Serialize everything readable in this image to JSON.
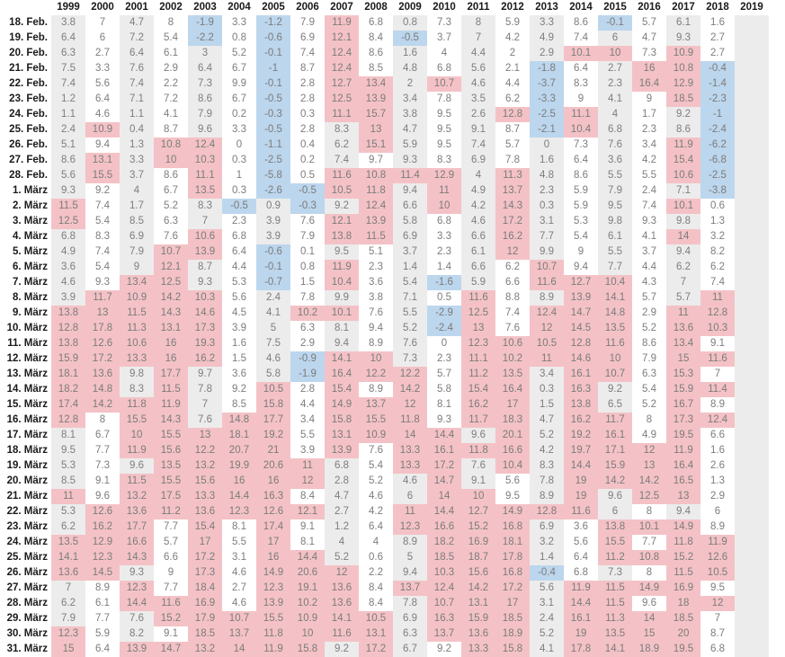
{
  "chart_data": {
    "type": "table",
    "title": "",
    "years": [
      "1999",
      "2000",
      "2001",
      "2002",
      "2003",
      "2004",
      "2005",
      "2006",
      "2007",
      "2008",
      "2009",
      "2010",
      "2011",
      "2012",
      "2013",
      "2014",
      "2015",
      "2016",
      "2017",
      "2018",
      "2019"
    ],
    "dates": [
      "18. Feb.",
      "19. Feb.",
      "20. Feb.",
      "21. Feb.",
      "22. Feb.",
      "23. Feb.",
      "24. Feb.",
      "25. Feb.",
      "26. Feb.",
      "27. Feb.",
      "28. Feb.",
      "1. März",
      "2. März",
      "3. März",
      "4. März",
      "5. März",
      "6. März",
      "7. März",
      "8. März",
      "9. März",
      "10. März",
      "11. März",
      "12. März",
      "13. März",
      "14. März",
      "15. März",
      "16. März",
      "17. März",
      "18. März",
      "19. März",
      "20. März",
      "21. März",
      "22. März",
      "23. März",
      "24. März",
      "25. März",
      "26. März",
      "27. März",
      "28. März",
      "29. März",
      "30. März",
      "31. März"
    ],
    "values": [
      [
        "3.8",
        "7",
        "4.7",
        "8",
        "-1.9",
        "3.3",
        "-1.2",
        "7.9",
        "11.9",
        "6.8",
        "0.8",
        "7.3",
        "8",
        "5.9",
        "3.3",
        "8.6",
        "-0.1",
        "5.7",
        "6.1",
        "1.6",
        ""
      ],
      [
        "6.4",
        "6",
        "7.2",
        "5.4",
        "-2.2",
        "0.8",
        "-0.6",
        "6.9",
        "12.1",
        "8.4",
        "-0.5",
        "3.7",
        "7",
        "4.2",
        "4.9",
        "7.4",
        "6",
        "4.7",
        "9.3",
        "2.7",
        ""
      ],
      [
        "6.3",
        "2.7",
        "6.4",
        "6.1",
        "3",
        "5.2",
        "-0.1",
        "7.4",
        "12.4",
        "8.6",
        "1.6",
        "4",
        "4.4",
        "2",
        "2.9",
        "10.1",
        "10",
        "7.3",
        "10.9",
        "2.7",
        ""
      ],
      [
        "7.5",
        "3.3",
        "7.6",
        "2.9",
        "6.4",
        "6.7",
        "-1",
        "8.7",
        "12.4",
        "8.5",
        "4.8",
        "6.8",
        "5.6",
        "2.1",
        "-1.8",
        "6.4",
        "2.7",
        "16",
        "10.8",
        "-0.4",
        ""
      ],
      [
        "7.4",
        "5.6",
        "7.4",
        "2.2",
        "7.3",
        "9.9",
        "-0.1",
        "2.8",
        "12.7",
        "13.4",
        "2",
        "10.7",
        "4.6",
        "4.4",
        "-3.7",
        "8.3",
        "2.3",
        "16.4",
        "12.9",
        "-1.4",
        ""
      ],
      [
        "1.2",
        "6.4",
        "7.1",
        "7.2",
        "8.6",
        "6.7",
        "-0.5",
        "2.8",
        "12.5",
        "13.9",
        "3.4",
        "7.8",
        "3.5",
        "6.2",
        "-3.3",
        "9",
        "4.1",
        "9",
        "18.5",
        "-2.3",
        ""
      ],
      [
        "1.1",
        "4.6",
        "1.1",
        "4.1",
        "7.9",
        "0.2",
        "-0.3",
        "0.3",
        "11.1",
        "15.7",
        "3.8",
        "9.5",
        "2.6",
        "12.8",
        "-2.5",
        "11.1",
        "4",
        "1.7",
        "9.2",
        "-1",
        ""
      ],
      [
        "2.4",
        "10.9",
        "0.4",
        "8.7",
        "9.6",
        "3.3",
        "-0.5",
        "2.8",
        "8.3",
        "13",
        "4.7",
        "9.5",
        "9.1",
        "8.7",
        "-2.1",
        "10.4",
        "6.8",
        "2.3",
        "8.6",
        "-2.4",
        ""
      ],
      [
        "5.1",
        "9.4",
        "1.3",
        "10.8",
        "12.4",
        "0",
        "-1.1",
        "0.4",
        "6.2",
        "15.1",
        "5.9",
        "9.5",
        "7.4",
        "5.7",
        "0",
        "7.3",
        "7.6",
        "3.4",
        "11.9",
        "-6.2",
        ""
      ],
      [
        "8.6",
        "13.1",
        "3.3",
        "10",
        "10.3",
        "0.3",
        "-2.5",
        "0.2",
        "7.4",
        "9.7",
        "9.3",
        "8.3",
        "6.9",
        "7.8",
        "1.6",
        "6.4",
        "3.6",
        "4.2",
        "15.4",
        "-6.8",
        ""
      ],
      [
        "5.6",
        "15.5",
        "3.7",
        "8.6",
        "11.1",
        "1",
        "-5.8",
        "0.5",
        "11.6",
        "10.8",
        "11.4",
        "12.9",
        "4",
        "11.3",
        "4.8",
        "8.6",
        "5.5",
        "5.5",
        "10.6",
        "-2.5",
        ""
      ],
      [
        "9.3",
        "9.2",
        "4",
        "6.7",
        "13.5",
        "0.3",
        "-2.6",
        "-0.5",
        "10.5",
        "11.8",
        "9.4",
        "11",
        "4.9",
        "13.7",
        "2.3",
        "5.9",
        "7.9",
        "2.4",
        "7.1",
        "-3.8",
        ""
      ],
      [
        "11.5",
        "7.4",
        "1.7",
        "5.2",
        "8.3",
        "-0.5",
        "0.9",
        "-0.3",
        "9.2",
        "12.4",
        "6.6",
        "10",
        "4.2",
        "14.3",
        "0.3",
        "5.9",
        "9.5",
        "7.4",
        "10.1",
        "0.6",
        ""
      ],
      [
        "12.5",
        "5.4",
        "8.5",
        "6.3",
        "7",
        "2.3",
        "3.9",
        "7.6",
        "12.1",
        "13.9",
        "5.8",
        "6.8",
        "4.6",
        "17.2",
        "3.1",
        "5.3",
        "9.8",
        "9.3",
        "9.8",
        "1.3",
        ""
      ],
      [
        "6.8",
        "8.3",
        "6.9",
        "7.6",
        "10.6",
        "6.8",
        "3.9",
        "7.9",
        "13.8",
        "11.5",
        "6.9",
        "3.3",
        "6.6",
        "16.2",
        "7.7",
        "5.4",
        "6.1",
        "4.1",
        "14",
        "3.2",
        ""
      ],
      [
        "4.9",
        "7.4",
        "7.9",
        "10.7",
        "13.9",
        "6.4",
        "-0.6",
        "0.1",
        "9.5",
        "5.1",
        "3.7",
        "2.3",
        "6.1",
        "12",
        "9.9",
        "9",
        "5.5",
        "3.7",
        "9.4",
        "8.2",
        ""
      ],
      [
        "3.6",
        "5.4",
        "9",
        "12.1",
        "8.7",
        "4.4",
        "-0.1",
        "0.8",
        "11.9",
        "2.3",
        "1.4",
        "1.4",
        "6.6",
        "6.2",
        "10.7",
        "9.4",
        "7.7",
        "4.4",
        "6.2",
        "6.2",
        ""
      ],
      [
        "4.6",
        "9.3",
        "13.4",
        "12.5",
        "9.3",
        "5.3",
        "-0.7",
        "1.5",
        "10.4",
        "3.6",
        "5.4",
        "-1.6",
        "5.9",
        "6.6",
        "11.6",
        "12.7",
        "10.4",
        "4.3",
        "7",
        "7.4",
        ""
      ],
      [
        "3.9",
        "11.7",
        "10.9",
        "14.2",
        "10.3",
        "5.6",
        "2.4",
        "7.8",
        "9.9",
        "3.8",
        "7.1",
        "0.5",
        "11.6",
        "8.8",
        "8.9",
        "13.9",
        "14.1",
        "5.7",
        "5.7",
        "11",
        ""
      ],
      [
        "13.8",
        "13",
        "11.5",
        "14.3",
        "14.6",
        "4.5",
        "4.1",
        "10.2",
        "10.1",
        "7.6",
        "5.5",
        "-2.9",
        "12.5",
        "7.4",
        "12.4",
        "14.7",
        "14.8",
        "2.9",
        "11",
        "12.8",
        ""
      ],
      [
        "12.8",
        "17.8",
        "11.3",
        "13.1",
        "17.3",
        "3.9",
        "5",
        "6.3",
        "8.1",
        "9.4",
        "5.2",
        "-2.4",
        "13",
        "7.6",
        "12",
        "14.5",
        "13.5",
        "5.2",
        "13.6",
        "10.3",
        ""
      ],
      [
        "13.8",
        "12.6",
        "10.6",
        "16",
        "19.3",
        "1.6",
        "7.5",
        "2.9",
        "9.4",
        "8.9",
        "7.6",
        "0",
        "12.3",
        "10.6",
        "10.5",
        "12.8",
        "11.6",
        "8.6",
        "13.4",
        "9.1",
        ""
      ],
      [
        "15.9",
        "17.2",
        "13.3",
        "16",
        "16.2",
        "1.5",
        "4.6",
        "-0.9",
        "14.1",
        "10",
        "7.3",
        "2.3",
        "11.1",
        "10.2",
        "11",
        "14.6",
        "10",
        "7.9",
        "15",
        "11.6",
        ""
      ],
      [
        "18.1",
        "13.6",
        "9.8",
        "17.7",
        "9.7",
        "3.6",
        "5.8",
        "-1.9",
        "16.4",
        "12.2",
        "12.2",
        "5.7",
        "11.2",
        "13.5",
        "3.4",
        "16.1",
        "10.7",
        "6.3",
        "15.3",
        "7",
        ""
      ],
      [
        "18.2",
        "14.8",
        "8.3",
        "11.5",
        "7.8",
        "9.2",
        "10.5",
        "2.8",
        "15.4",
        "8.9",
        "14.2",
        "5.8",
        "15.4",
        "16.4",
        "0.3",
        "16.3",
        "9.2",
        "5.4",
        "15.9",
        "11.4",
        ""
      ],
      [
        "17.4",
        "14.2",
        "11.8",
        "11.9",
        "7",
        "8.5",
        "15.8",
        "4.4",
        "14.9",
        "13.7",
        "12",
        "8.1",
        "16.2",
        "17",
        "1.5",
        "13.8",
        "6.5",
        "5.2",
        "16.7",
        "8.9",
        ""
      ],
      [
        "12.8",
        "8",
        "15.5",
        "14.3",
        "7.6",
        "14.8",
        "17.7",
        "3.4",
        "15.8",
        "15.5",
        "11.8",
        "9.3",
        "11.7",
        "18.3",
        "4.7",
        "16.2",
        "11.7",
        "8",
        "17.3",
        "12.4",
        ""
      ],
      [
        "8.1",
        "6.7",
        "10",
        "15.5",
        "13",
        "18.1",
        "19.2",
        "5.5",
        "13.1",
        "10.9",
        "14",
        "14.4",
        "9.6",
        "20.1",
        "5.2",
        "19.2",
        "16.1",
        "4.9",
        "19.5",
        "6.6",
        ""
      ],
      [
        "9.5",
        "7.7",
        "11.9",
        "15.6",
        "12.2",
        "20.7",
        "21",
        "3.9",
        "13.9",
        "7.6",
        "13.3",
        "16.1",
        "11.8",
        "16.6",
        "4.2",
        "19.7",
        "17.1",
        "12",
        "11.9",
        "1.6",
        ""
      ],
      [
        "5.3",
        "7.3",
        "9.6",
        "13.5",
        "13.2",
        "19.9",
        "20.6",
        "11",
        "6.8",
        "5.4",
        "13.3",
        "17.2",
        "7.6",
        "10.4",
        "8.3",
        "14.4",
        "15.9",
        "13",
        "16.4",
        "2.6",
        ""
      ],
      [
        "8.5",
        "9.1",
        "11.5",
        "15.5",
        "15.6",
        "16",
        "16",
        "12",
        "2.8",
        "5.2",
        "4.6",
        "14.7",
        "9.1",
        "5.6",
        "7.8",
        "19",
        "14.2",
        "14.2",
        "16.5",
        "1.3",
        ""
      ],
      [
        "11",
        "9.6",
        "13.2",
        "17.5",
        "13.3",
        "14.4",
        "16.3",
        "8.4",
        "4.7",
        "4.6",
        "6",
        "14",
        "10",
        "9.5",
        "8.9",
        "19",
        "9.6",
        "12.5",
        "13",
        "2.9",
        ""
      ],
      [
        "5.3",
        "12.6",
        "13.6",
        "11.2",
        "13.6",
        "12.3",
        "12.6",
        "12.1",
        "2.7",
        "4.2",
        "11",
        "14.4",
        "12.7",
        "14.9",
        "12.8",
        "11.6",
        "6",
        "8",
        "9.4",
        "6",
        ""
      ],
      [
        "6.2",
        "16.2",
        "17.7",
        "7.7",
        "15.4",
        "8.1",
        "17.4",
        "9.1",
        "1.2",
        "6.4",
        "12.3",
        "16.6",
        "15.2",
        "16.8",
        "6.9",
        "3.6",
        "13.8",
        "10.1",
        "14.9",
        "8.9",
        ""
      ],
      [
        "13.5",
        "12.9",
        "16.6",
        "5.7",
        "17",
        "5.5",
        "17",
        "8.1",
        "4",
        "4",
        "8.9",
        "18.2",
        "16.9",
        "18.1",
        "3.2",
        "5.6",
        "15.5",
        "7.7",
        "11.8",
        "11.9",
        ""
      ],
      [
        "14.1",
        "12.3",
        "14.3",
        "6.6",
        "17.2",
        "3.1",
        "16",
        "14.4",
        "5.2",
        "0.6",
        "5",
        "18.5",
        "18.7",
        "17.8",
        "1.4",
        "6.4",
        "11.2",
        "10.8",
        "15.2",
        "12.6",
        ""
      ],
      [
        "13.6",
        "14.5",
        "9.3",
        "9",
        "17.3",
        "4.6",
        "14.9",
        "20.6",
        "12",
        "2.2",
        "9.4",
        "10.3",
        "15.6",
        "16.8",
        "-0.4",
        "6.8",
        "7.3",
        "8",
        "11.5",
        "10.5",
        ""
      ],
      [
        "7",
        "8.9",
        "12.3",
        "7.7",
        "18.4",
        "2.7",
        "12.3",
        "19.1",
        "13.6",
        "8.4",
        "13.7",
        "12.4",
        "14.2",
        "17.2",
        "5.6",
        "11.9",
        "11.5",
        "14.9",
        "16.9",
        "9.5",
        ""
      ],
      [
        "6.2",
        "6.1",
        "14.4",
        "11.6",
        "16.9",
        "4.6",
        "13.9",
        "10.2",
        "13.6",
        "8.4",
        "7.8",
        "10.7",
        "13.1",
        "17",
        "3.1",
        "14.4",
        "11.5",
        "9.6",
        "18",
        "12",
        ""
      ],
      [
        "7.9",
        "7.7",
        "7.6",
        "15.2",
        "17.9",
        "10.7",
        "15.5",
        "10.9",
        "14.1",
        "10.5",
        "6.9",
        "16.3",
        "15.9",
        "18.5",
        "2.4",
        "16.1",
        "11.3",
        "14",
        "18.5",
        "7",
        ""
      ],
      [
        "12.3",
        "5.9",
        "8.2",
        "9.1",
        "18.5",
        "13.7",
        "11.8",
        "10",
        "11.6",
        "13.1",
        "6.3",
        "13.7",
        "13.6",
        "18.9",
        "5.2",
        "19",
        "13.5",
        "15",
        "20",
        "8.7",
        ""
      ],
      [
        "15",
        "6.4",
        "13.9",
        "14.7",
        "13.2",
        "14",
        "11.9",
        "15.8",
        "9.2",
        "17.2",
        "6.7",
        "9.2",
        "13.3",
        "15.8",
        "4.1",
        "17.8",
        "14.1",
        "18.9",
        "19.5",
        "6.8",
        ""
      ]
    ]
  }
}
